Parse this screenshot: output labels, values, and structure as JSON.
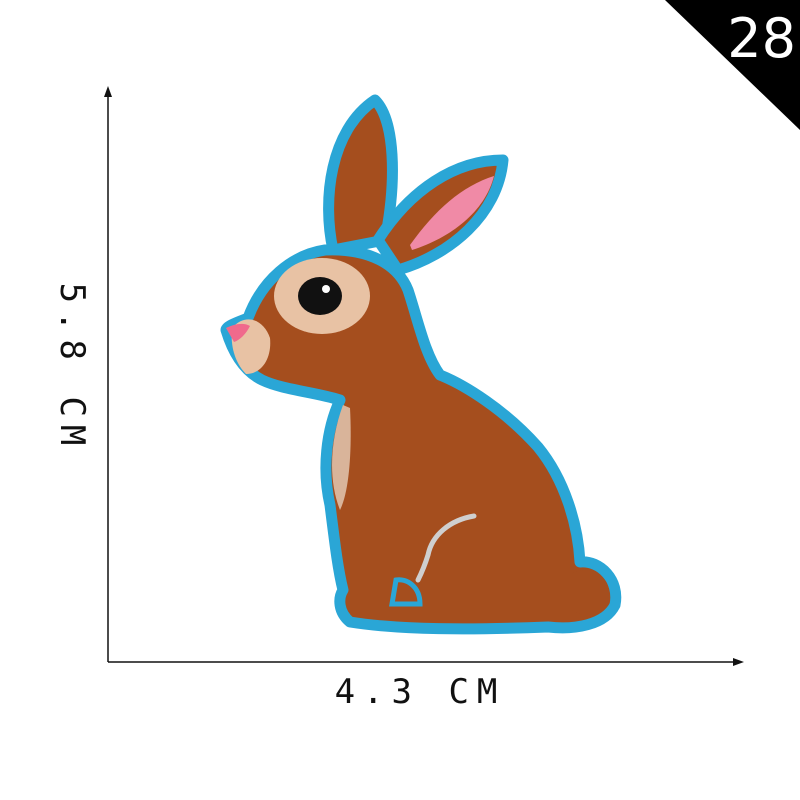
{
  "photo": {
    "corner_number": "28",
    "width_dimension": "4.3 CM",
    "height_dimension": "5.8 CM",
    "subject": "embroidered-rabbit-patch"
  },
  "colors": {
    "background": "#ffffff",
    "corner_triangle": "#000000",
    "patch_border": "#2aa6d6",
    "fur": "#a54e1e",
    "fur_light": "#d9b49a",
    "inner_ear": "#f08aa6",
    "eye": "#111111",
    "axis": "#111111"
  }
}
